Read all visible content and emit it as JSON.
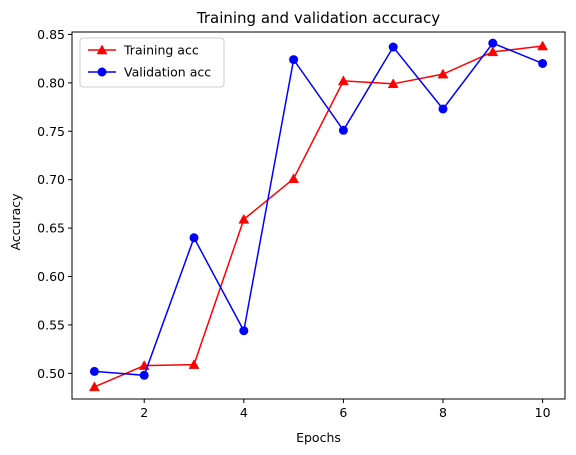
{
  "chart_data": {
    "type": "line",
    "title": "Training and validation accuracy",
    "xlabel": "Epochs",
    "ylabel": "Accuracy",
    "xlim": [
      0.55,
      10.45
    ],
    "ylim": [
      0.4735,
      0.8525
    ],
    "x_ticks": [
      2,
      4,
      6,
      8,
      10
    ],
    "y_ticks": [
      0.5,
      0.55,
      0.6,
      0.65,
      0.7,
      0.75,
      0.8,
      0.85
    ],
    "y_tick_labels": [
      "0.50",
      "0.55",
      "0.60",
      "0.65",
      "0.70",
      "0.75",
      "0.80",
      "0.85"
    ],
    "grid": false,
    "legend_position": "top-left",
    "x": [
      1,
      2,
      3,
      4,
      5,
      6,
      7,
      8,
      9,
      10
    ],
    "series": [
      {
        "name": "Training acc",
        "color": "#ff0000",
        "marker": "triangle",
        "values": [
          0.486,
          0.508,
          0.509,
          0.659,
          0.701,
          0.802,
          0.799,
          0.809,
          0.832,
          0.838
        ]
      },
      {
        "name": "Validation acc",
        "color": "#0000ff",
        "marker": "circle",
        "values": [
          0.502,
          0.498,
          0.64,
          0.544,
          0.824,
          0.751,
          0.837,
          0.773,
          0.841,
          0.82
        ]
      }
    ]
  }
}
